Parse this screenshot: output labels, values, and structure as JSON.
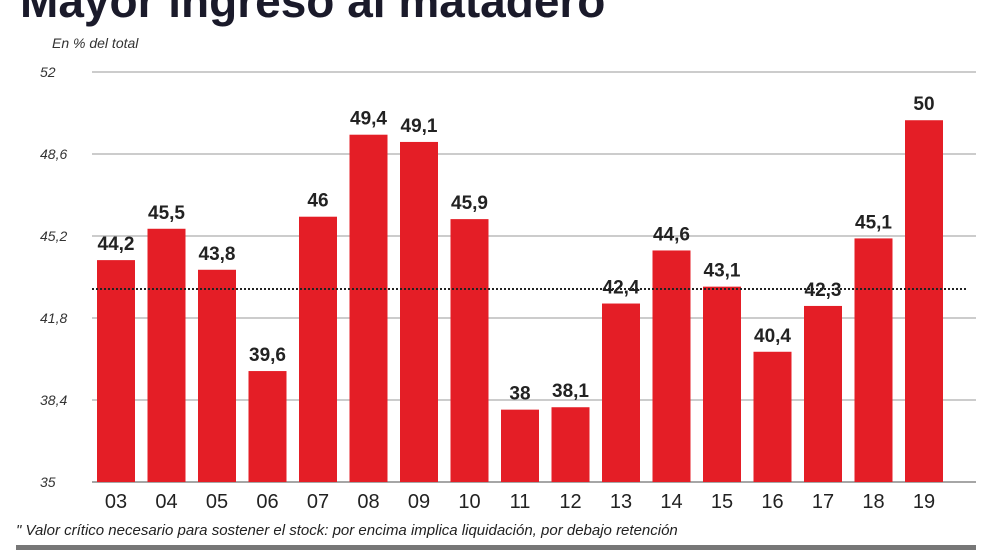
{
  "chart_data": {
    "type": "bar",
    "title": "Mayor ingreso al matadero",
    "ylabel": "En % del total",
    "xlabel": "",
    "categories": [
      "03",
      "04",
      "05",
      "06",
      "07",
      "08",
      "09",
      "10",
      "11",
      "12",
      "13",
      "14",
      "15",
      "16",
      "17",
      "18",
      "19"
    ],
    "values": [
      44.2,
      45.5,
      43.8,
      39.6,
      46,
      49.4,
      49.1,
      45.9,
      38,
      38.1,
      42.4,
      44.6,
      43.1,
      40.4,
      42.3,
      45.1,
      50
    ],
    "data_labels": [
      "44,2",
      "45,5",
      "43,8",
      "39,6",
      "46",
      "49,4",
      "49,1",
      "45,9",
      "38",
      "38,1",
      "42,4",
      "44,6",
      "43,1",
      "40,4",
      "42,3",
      "45,1",
      "50"
    ],
    "ylim": [
      35,
      52
    ],
    "yticks": [
      35,
      38.4,
      41.8,
      45.2,
      48.6,
      52
    ],
    "ytick_labels": [
      "35",
      "38,4",
      "41,8",
      "45,2",
      "48,6",
      "52"
    ],
    "grid": true,
    "reference_line": {
      "value": 43,
      "style": "dotted"
    },
    "footnote": "\" Valor crítico necesario para sostener el stock: por encima implica liquidación, por debajo retención",
    "bar_color": "#e41e26"
  }
}
